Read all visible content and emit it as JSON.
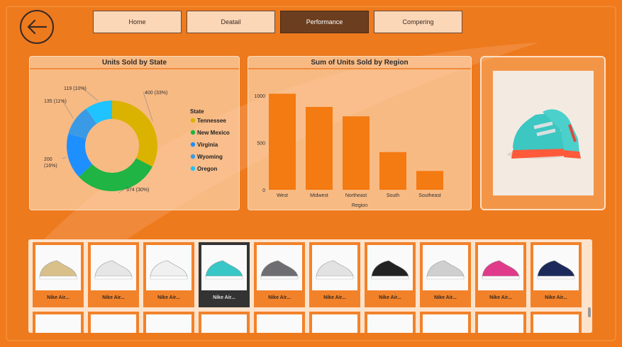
{
  "nav": {
    "items": [
      {
        "label": "Home",
        "active": false
      },
      {
        "label": "Deatail",
        "active": false
      },
      {
        "label": "Performance",
        "active": true
      },
      {
        "label": "Compering",
        "active": false
      }
    ]
  },
  "chart_data": [
    {
      "type": "pie",
      "title": "Units Sold by State",
      "legend_title": "State",
      "legend_position": "right",
      "categories": [
        "Tennessee",
        "New Mexico",
        "Virginia",
        "Wyoming",
        "Oregon"
      ],
      "values": [
        400,
        374,
        200,
        135,
        119
      ],
      "labels": [
        "400 (33%)",
        "374 (30%)",
        "200\n(16%)",
        "135 (11%)",
        "119 (10%)"
      ],
      "colors": [
        "#d9b300",
        "#1fb443",
        "#1e8fff",
        "#3a9ae6",
        "#1ec3ff"
      ]
    },
    {
      "type": "bar",
      "title": "Sum of Units Sold by Region",
      "xlabel": "Region",
      "ylabel": "",
      "categories": [
        "West",
        "Midwest",
        "Northeast",
        "South",
        "Southeast"
      ],
      "values": [
        1020,
        880,
        780,
        400,
        200
      ],
      "ylim": [
        0,
        1000
      ],
      "yticks": [
        "0",
        "500",
        "1000"
      ],
      "color": "#f47a12"
    }
  ],
  "gallery": {
    "items": [
      {
        "name": "Nike Air...",
        "selected": false,
        "color": "#d9c08a"
      },
      {
        "name": "Nike Air...",
        "selected": false,
        "color": "#e6e6e6"
      },
      {
        "name": "Nike Air...",
        "selected": false,
        "color": "#f0f0f0"
      },
      {
        "name": "Nike Air...",
        "selected": true,
        "color": "#38c6c6"
      },
      {
        "name": "Nike Air...",
        "selected": false,
        "color": "#6e6e72"
      },
      {
        "name": "Nike Air...",
        "selected": false,
        "color": "#e2e2e2"
      },
      {
        "name": "Nike Air...",
        "selected": false,
        "color": "#222222"
      },
      {
        "name": "Nike Air...",
        "selected": false,
        "color": "#cfcfcf"
      },
      {
        "name": "Nike Air...",
        "selected": false,
        "color": "#e03a8a"
      },
      {
        "name": "Nike Air...",
        "selected": false,
        "color": "#1b2a5a"
      }
    ]
  },
  "colors": {
    "background": "#f07a1c",
    "active_nav": "#6b3e1f",
    "bar": "#f47a12"
  },
  "icons": {
    "back": "arrow-left-icon"
  }
}
